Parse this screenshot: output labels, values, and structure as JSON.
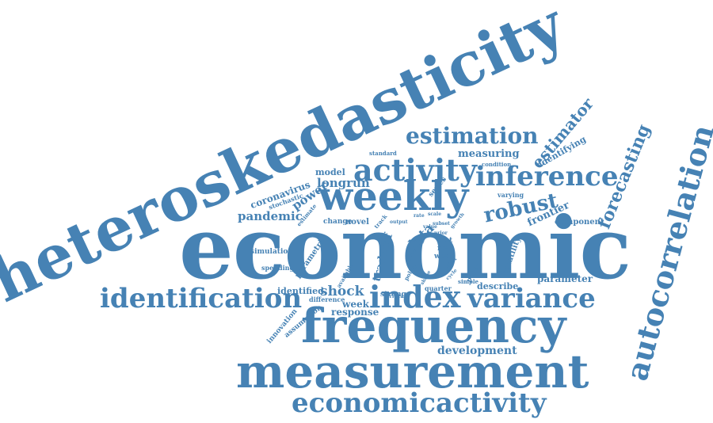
{
  "style": {
    "word_color": "#4682b4",
    "background": "#ffffff"
  },
  "words": {
    "heteroskedasticity": "heteroskedasticity",
    "economic": "economic",
    "autocorrelation": "autocorrelation",
    "frequency": "frequency",
    "measurement": "measurement",
    "weekly": "weekly",
    "economicactivity": "economicactivity",
    "identification": "identification",
    "index": "index",
    "variance": "variance",
    "activity": "activity",
    "inference": "inference",
    "estimation": "estimation",
    "forecasting": "forecasting",
    "robust": "robust",
    "estimator": "estimator",
    "longrun": "longrun",
    "pandemic": "pandemic",
    "coronavirus": "coronavirus",
    "kernel": "kernel",
    "power": "power",
    "model": "model",
    "measuring": "measuring",
    "identifying": "identifying",
    "shock": "shock",
    "week": "week",
    "response": "response",
    "identified": "identified",
    "development": "development",
    "parameter": "parameter",
    "describe": "describe",
    "frontier": "frontier",
    "component": "component",
    "volatility": "volatility",
    "tradeoff": "tradeoff",
    "data": "data",
    "simulation": "simulation",
    "spending": "spending",
    "parametric": "parametric",
    "innovation": "innovation",
    "assumption": "assumption",
    "difference": "difference",
    "change": "change",
    "novel": "novel",
    "stochastic": "stochastic",
    "estimate": "estimate",
    "standard": "standard",
    "condition": "condition",
    "series": "series",
    "varying": "varying",
    "track": "track",
    "output": "output",
    "strong": "strong",
    "policy": "policy",
    "available": "available",
    "quarter": "quarter",
    "simple": "simple",
    "paper": "paper",
    "test": "test",
    "real": "real",
    "weak": "weak",
    "size": "size",
    "critical": "critical",
    "subset": "subset",
    "growth": "growth",
    "value": "value",
    "prior": "prior",
    "effect": "effect",
    "cycle": "cycle",
    "study": "study",
    "scale": "scale",
    "shape": "shape",
    "rate": "rate"
  }
}
